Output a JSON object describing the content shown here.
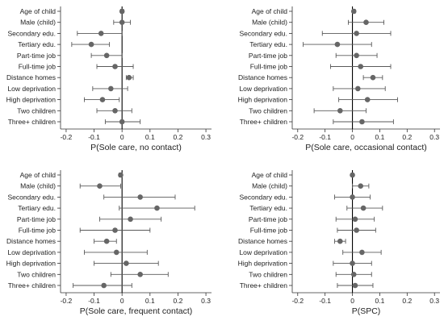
{
  "chart_data": [
    {
      "type": "dot-whisker",
      "xlabel": "P(Sole care, no contact)",
      "xlim": [
        -0.22,
        0.32
      ],
      "xticks": [
        "-0.2",
        "-0.1",
        "0",
        "0.1",
        "0.2",
        "0.3"
      ],
      "categories": [
        "Age of child",
        "Male (child)",
        "Secondary edu.",
        "Tertiary edu.",
        "Part-time job",
        "Full-time job",
        "Distance homes",
        "Low deprivation",
        "High deprivation",
        "Two children",
        "Three+ children"
      ],
      "estimates": [
        0.0,
        0.0,
        -0.075,
        -0.11,
        -0.055,
        -0.025,
        0.025,
        -0.04,
        -0.07,
        -0.025,
        0.0
      ],
      "ci_low": [
        -0.005,
        -0.03,
        -0.16,
        -0.18,
        -0.11,
        -0.09,
        0.015,
        -0.105,
        -0.135,
        -0.09,
        -0.06
      ],
      "ci_high": [
        0.005,
        0.03,
        0.0,
        -0.045,
        0.0,
        0.04,
        0.04,
        0.02,
        -0.01,
        0.035,
        0.065
      ],
      "ref_line": 0,
      "grid": false
    },
    {
      "type": "dot-whisker",
      "xlabel": "P(Sole care, occasional contact)",
      "xlim": [
        -0.22,
        0.32
      ],
      "xticks": [
        "-0.2",
        "-0.1",
        "0",
        "0.1",
        "0.2",
        "0.3"
      ],
      "categories": [
        "Age of child",
        "Male (child)",
        "Secondary edu.",
        "Tertiary edu.",
        "Part-time job",
        "Full-time job",
        "Distance homes",
        "Low deprivation",
        "High deprivation",
        "Two children",
        "Three+ children"
      ],
      "estimates": [
        0.005,
        0.05,
        0.015,
        -0.055,
        0.015,
        0.03,
        0.075,
        0.02,
        0.055,
        -0.045,
        0.035
      ],
      "ci_low": [
        0.0,
        -0.015,
        -0.11,
        -0.18,
        -0.06,
        -0.08,
        0.04,
        -0.07,
        -0.05,
        -0.14,
        -0.07
      ],
      "ci_high": [
        0.01,
        0.115,
        0.14,
        0.07,
        0.09,
        0.14,
        0.11,
        0.12,
        0.165,
        0.05,
        0.15
      ],
      "ref_line": 0,
      "grid": false
    },
    {
      "type": "dot-whisker",
      "xlabel": "P(Sole care, frequent contact)",
      "xlim": [
        -0.22,
        0.32
      ],
      "xticks": [
        "-0.2",
        "-0.1",
        "0",
        "0.1",
        "0.2",
        "0.3"
      ],
      "categories": [
        "Age of child",
        "Male (child)",
        "Secondary edu.",
        "Tertiary edu.",
        "Part-time job",
        "Full-time job",
        "Distance homes",
        "Low deprivation",
        "High deprivation",
        "Two children",
        "Three+ children"
      ],
      "estimates": [
        -0.005,
        -0.08,
        0.065,
        0.125,
        0.03,
        -0.025,
        -0.055,
        -0.02,
        0.015,
        0.065,
        -0.065
      ],
      "ci_low": [
        -0.01,
        -0.15,
        -0.065,
        -0.01,
        -0.08,
        -0.15,
        -0.1,
        -0.135,
        -0.1,
        -0.04,
        -0.175
      ],
      "ci_high": [
        0.0,
        -0.005,
        0.19,
        0.26,
        0.14,
        0.1,
        -0.02,
        0.09,
        0.13,
        0.165,
        0.035
      ],
      "ref_line": 0,
      "grid": false
    },
    {
      "type": "dot-whisker",
      "xlabel": "P(SPC)",
      "xlim": [
        -0.22,
        0.32
      ],
      "xticks": [
        "-0.2",
        "-0.1",
        "0",
        "0.1",
        "0.2",
        "0.3"
      ],
      "categories": [
        "Age of child",
        "Male (child)",
        "Secondary edu.",
        "Tertiary edu.",
        "Part-time job",
        "Full-time job",
        "Distance homes",
        "Low deprivation",
        "High deprivation",
        "Two children",
        "Three+ children"
      ],
      "estimates": [
        0.0,
        0.03,
        0.0,
        0.04,
        0.01,
        0.015,
        -0.045,
        0.035,
        0.0,
        0.005,
        0.01
      ],
      "ci_low": [
        -0.003,
        0.0,
        -0.065,
        -0.02,
        -0.06,
        -0.055,
        -0.065,
        -0.035,
        -0.07,
        -0.06,
        -0.055
      ],
      "ci_high": [
        0.003,
        0.06,
        0.065,
        0.11,
        0.08,
        0.085,
        -0.025,
        0.105,
        0.07,
        0.07,
        0.075
      ],
      "ref_line": 0,
      "grid": false
    }
  ],
  "colors": {
    "marker": "#666666",
    "whisker": "#5a5a5a",
    "axis": "#333333",
    "ref_line": "#000000"
  }
}
